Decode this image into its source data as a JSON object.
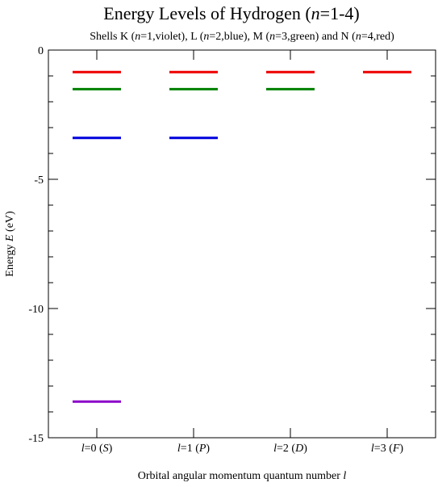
{
  "chart_data": {
    "type": "line",
    "title": {
      "main": "Energy Levels of Hydrogen (",
      "var": "n",
      "rest": "=1-4)"
    },
    "subtitle": [
      {
        "text": "Shells K (",
        "italic": false
      },
      {
        "text": "n",
        "italic": true
      },
      {
        "text": "=1,violet), L (",
        "italic": false
      },
      {
        "text": "n",
        "italic": true
      },
      {
        "text": "=2,blue), M (",
        "italic": false
      },
      {
        "text": "n",
        "italic": true
      },
      {
        "text": "=3,green) and N (",
        "italic": false
      },
      {
        "text": "n",
        "italic": true
      },
      {
        "text": "=4,red)",
        "italic": false
      }
    ],
    "xlabel": {
      "text": "Orbital angular momentum quantum number ",
      "var": "l"
    },
    "ylabel": {
      "text": "Energy ",
      "var": "E",
      "unit": " (eV)"
    },
    "ylim": [
      -15,
      0
    ],
    "y_major_ticks": [
      0,
      -5,
      -10,
      -15
    ],
    "y_minor_step": 1,
    "categories": [
      {
        "var": "l",
        "eq": "=0 (",
        "letter": "S",
        "close": ")"
      },
      {
        "var": "l",
        "eq": "=1 (",
        "letter": "P",
        "close": ")"
      },
      {
        "var": "l",
        "eq": "=2 (",
        "letter": "D",
        "close": ")"
      },
      {
        "var": "l",
        "eq": "=3 (",
        "letter": "F",
        "close": ")"
      }
    ],
    "series": [
      {
        "shell": "K",
        "n": 1,
        "color": "#8b00c8",
        "energy": -13.6,
        "l_values": [
          0
        ]
      },
      {
        "shell": "L",
        "n": 2,
        "color": "#0000dd",
        "energy": -3.4,
        "l_values": [
          0,
          1
        ]
      },
      {
        "shell": "M",
        "n": 3,
        "color": "#008000",
        "energy": -1.51,
        "l_values": [
          0,
          1,
          2
        ]
      },
      {
        "shell": "N",
        "n": 4,
        "color": "#ee0000",
        "energy": -0.85,
        "l_values": [
          0,
          1,
          2,
          3
        ]
      }
    ]
  }
}
